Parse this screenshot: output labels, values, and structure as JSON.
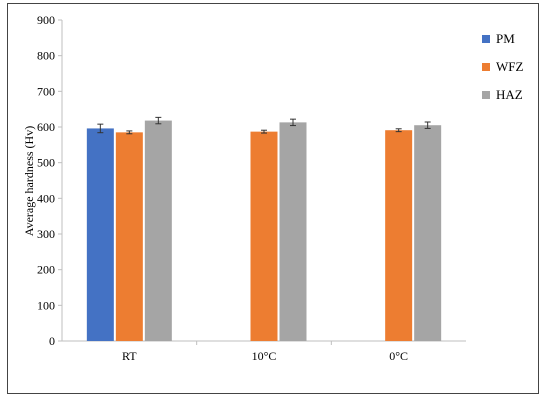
{
  "chart_data": {
    "type": "bar",
    "title": "",
    "xlabel": "",
    "ylabel": "Average hardness (Hv)",
    "ylim": [
      0,
      900
    ],
    "yticks": [
      0,
      100,
      200,
      300,
      400,
      500,
      600,
      700,
      800,
      900
    ],
    "categories": [
      "RT",
      "10°C",
      "0°C"
    ],
    "grid": false,
    "legend_position": "right",
    "series": [
      {
        "name": "PM",
        "color": "#4472C4",
        "values": [
          596,
          null,
          null
        ],
        "errors": [
          12,
          null,
          null
        ]
      },
      {
        "name": "WFZ",
        "color": "#ED7D31",
        "values": [
          585,
          587,
          591
        ],
        "errors": [
          4,
          4,
          4
        ]
      },
      {
        "name": "HAZ",
        "color": "#A5A5A5",
        "values": [
          618,
          613,
          605
        ],
        "errors": [
          9,
          9,
          9
        ]
      }
    ]
  }
}
